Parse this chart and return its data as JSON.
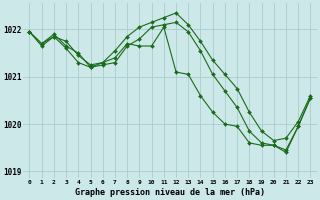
{
  "background_color": "#cce8e8",
  "grid_color": "#aacccc",
  "line_color": "#1a6b1a",
  "hours": [
    0,
    1,
    2,
    3,
    4,
    5,
    6,
    7,
    8,
    9,
    10,
    11,
    12,
    13,
    14,
    15,
    16,
    17,
    18,
    19,
    20,
    21,
    22,
    23
  ],
  "series1": [
    1021.95,
    1021.7,
    1021.85,
    1021.75,
    1021.45,
    1021.25,
    1021.3,
    1021.55,
    1021.85,
    1022.05,
    1022.15,
    1022.25,
    1022.35,
    1022.1,
    1021.75,
    1021.35,
    1021.05,
    1020.75,
    1020.25,
    1019.85,
    1019.65,
    1019.7,
    1020.05,
    1020.6
  ],
  "series2": [
    1021.95,
    1021.65,
    1021.85,
    1021.6,
    1021.3,
    1021.2,
    1021.25,
    1021.3,
    1021.65,
    1021.8,
    1022.05,
    1022.1,
    1022.15,
    1021.95,
    1021.55,
    1021.05,
    1020.7,
    1020.35,
    1019.85,
    1019.6,
    1019.55,
    1019.45,
    1019.95,
    1020.55
  ],
  "series3": [
    1021.95,
    1021.7,
    1021.9,
    1021.65,
    1021.5,
    1021.2,
    1021.3,
    1021.4,
    1021.7,
    1021.65,
    1021.65,
    1022.05,
    1021.1,
    1021.05,
    1020.6,
    1020.25,
    1020.0,
    1019.95,
    1019.6,
    1019.55,
    1019.55,
    1019.4,
    1019.95,
    1020.55
  ],
  "ylim": [
    1018.85,
    1022.55
  ],
  "yticks": [
    1019,
    1020,
    1021,
    1022
  ],
  "xlabel": "Graphe pression niveau de la mer (hPa)",
  "markersize": 2.0,
  "linewidth": 0.8
}
